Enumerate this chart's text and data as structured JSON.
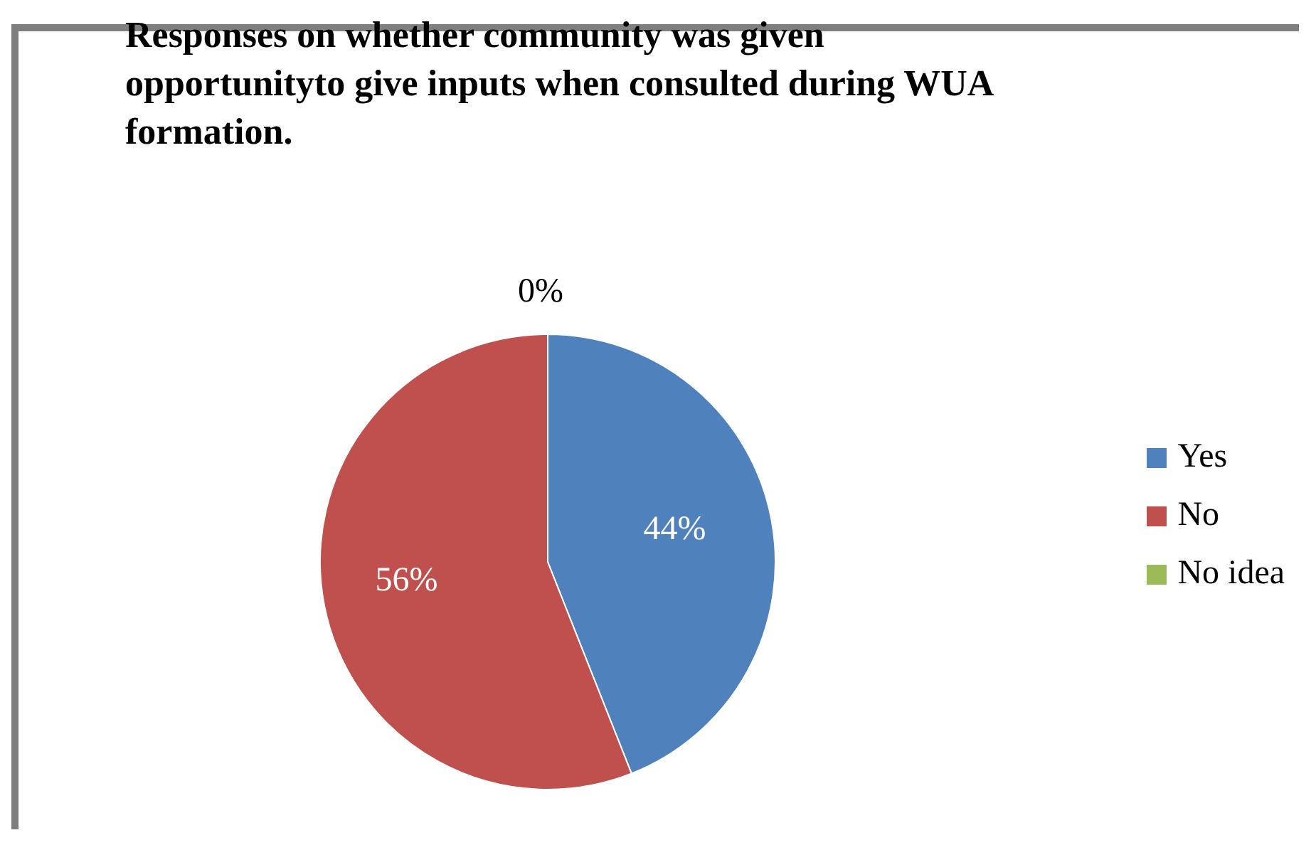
{
  "chart_data": {
    "type": "pie",
    "title": "Responses on whether community was given opportunityto give inputs when consulted during WUA formation.",
    "categories": [
      "Yes",
      "No",
      "No idea"
    ],
    "values": [
      44,
      56,
      0
    ],
    "value_labels": [
      "44%",
      "56%",
      "0%"
    ],
    "colors": [
      "#4f81bd",
      "#c0504d",
      "#9bbb59"
    ],
    "legend": "right"
  }
}
